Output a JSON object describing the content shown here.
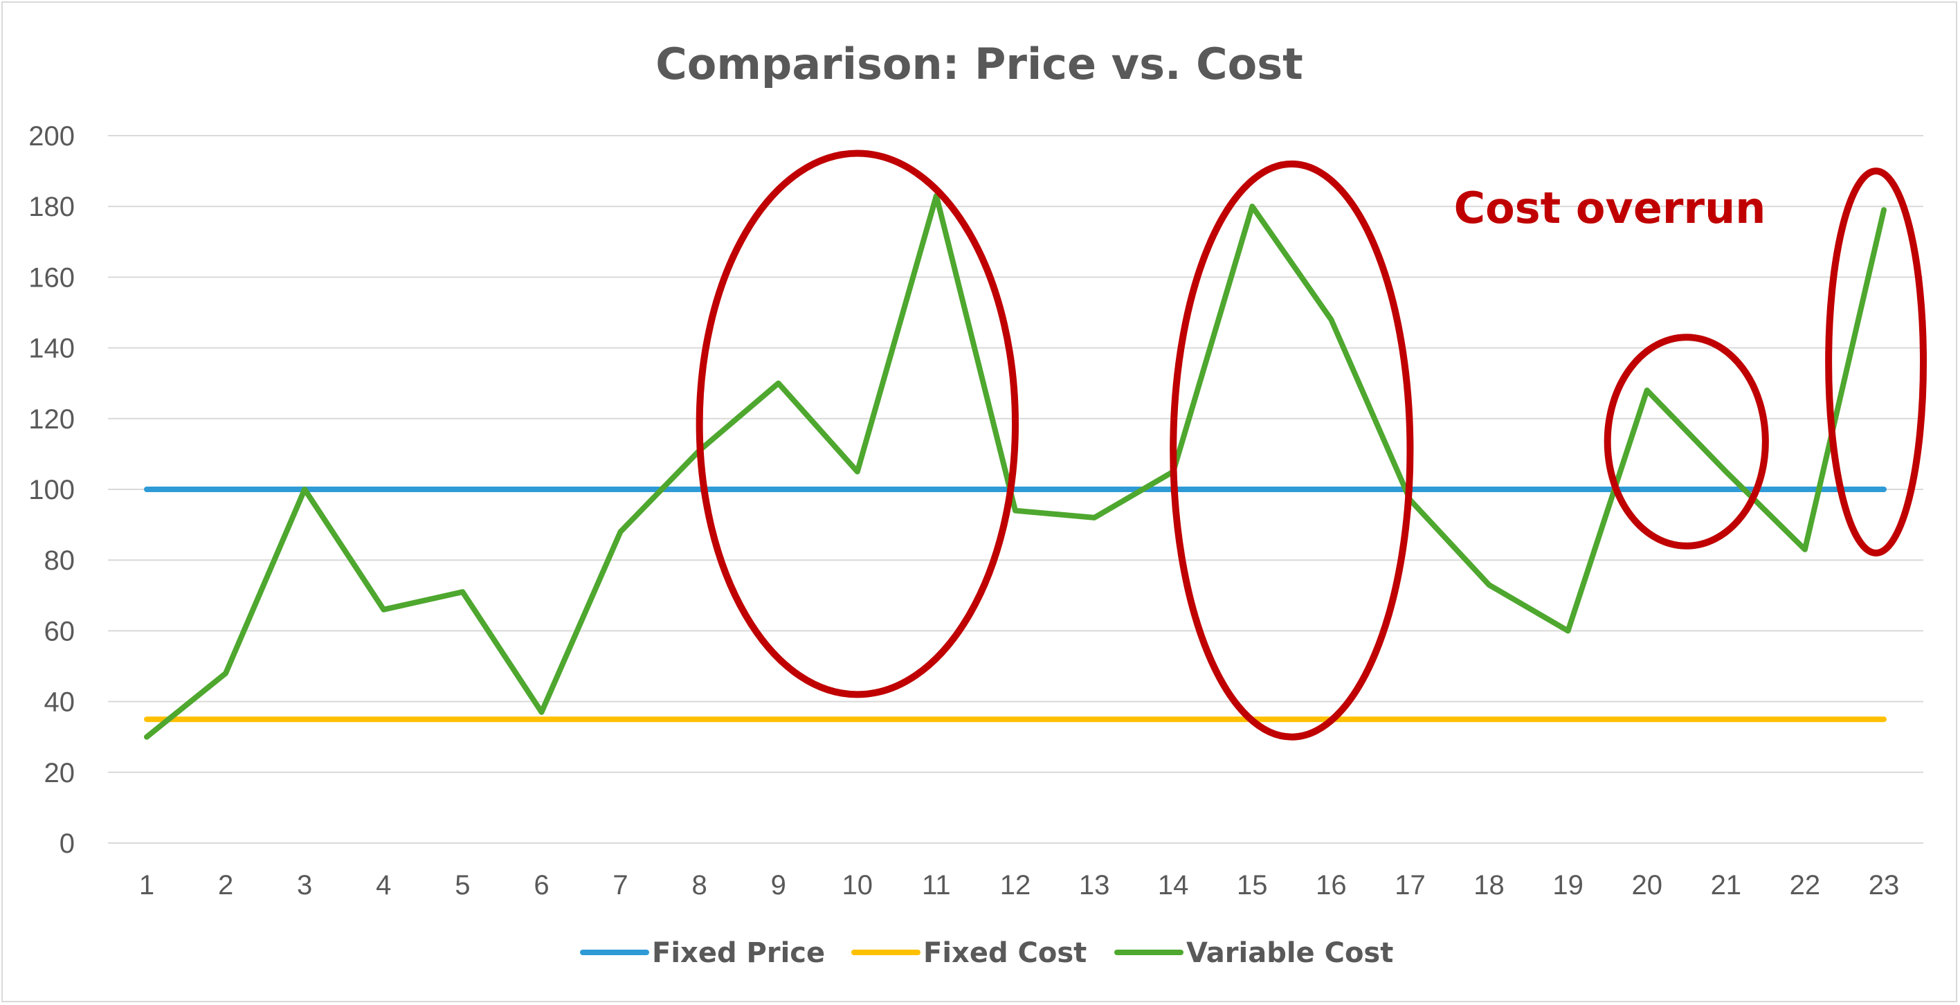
{
  "chart_data": {
    "type": "line",
    "title": "Comparison: Price vs. Cost",
    "xlabel": "",
    "ylabel": "",
    "categories": [
      "1",
      "2",
      "3",
      "4",
      "5",
      "6",
      "7",
      "8",
      "9",
      "10",
      "11",
      "12",
      "13",
      "14",
      "15",
      "16",
      "17",
      "18",
      "19",
      "20",
      "21",
      "22",
      "23"
    ],
    "ylim": [
      0,
      200
    ],
    "yticks": [
      0,
      20,
      40,
      60,
      80,
      100,
      120,
      140,
      160,
      180,
      200
    ],
    "grid": "horizontal",
    "legend_position": "bottom",
    "series": [
      {
        "name": "Fixed Price",
        "color": "#2e9bd6",
        "values": [
          100,
          100,
          100,
          100,
          100,
          100,
          100,
          100,
          100,
          100,
          100,
          100,
          100,
          100,
          100,
          100,
          100,
          100,
          100,
          100,
          100,
          100,
          100
        ]
      },
      {
        "name": "Fixed Cost",
        "color": "#ffc000",
        "values": [
          35,
          35,
          35,
          35,
          35,
          35,
          35,
          35,
          35,
          35,
          35,
          35,
          35,
          35,
          35,
          35,
          35,
          35,
          35,
          35,
          35,
          35,
          35
        ]
      },
      {
        "name": "Variable Cost",
        "color": "#4ea72e",
        "values": [
          30,
          48,
          100,
          66,
          71,
          37,
          88,
          111,
          130,
          105,
          183,
          94,
          92,
          105,
          180,
          148,
          97,
          73,
          60,
          128,
          105,
          83,
          179
        ]
      }
    ],
    "annotations": {
      "label": "Cost overrun",
      "color": "#c00000",
      "highlighted_regions": [
        {
          "from": 8,
          "to": 12
        },
        {
          "from": 14,
          "to": 17
        },
        {
          "from": 19.5,
          "to": 21.5
        },
        {
          "from": 22.3,
          "to": 23.5
        }
      ]
    }
  }
}
